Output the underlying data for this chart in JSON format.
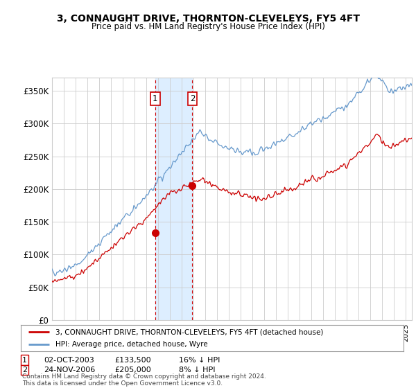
{
  "title": "3, CONNAUGHT DRIVE, THORNTON-CLEVELEYS, FY5 4FT",
  "subtitle": "Price paid vs. HM Land Registry's House Price Index (HPI)",
  "ylim": [
    0,
    370000
  ],
  "yticks": [
    0,
    50000,
    100000,
    150000,
    200000,
    250000,
    300000,
    350000
  ],
  "ytick_labels": [
    "£0",
    "£50K",
    "£100K",
    "£150K",
    "£200K",
    "£250K",
    "£300K",
    "£350K"
  ],
  "sale1_date": 2003.75,
  "sale1_price": 133500,
  "sale1_label": "1",
  "sale2_date": 2006.9,
  "sale2_price": 205000,
  "sale2_label": "2",
  "legend_line1": "3, CONNAUGHT DRIVE, THORNTON-CLEVELEYS, FY5 4FT (detached house)",
  "legend_line2": "HPI: Average price, detached house, Wyre",
  "footer": "Contains HM Land Registry data © Crown copyright and database right 2024.\nThis data is licensed under the Open Government Licence v3.0.",
  "line_color_red": "#cc0000",
  "line_color_blue": "#6699cc",
  "shade_color": "#ddeeff",
  "marker_box_color": "#cc0000",
  "grid_color": "#cccccc",
  "background_color": "#ffffff",
  "xstart": 1995,
  "xend": 2025
}
